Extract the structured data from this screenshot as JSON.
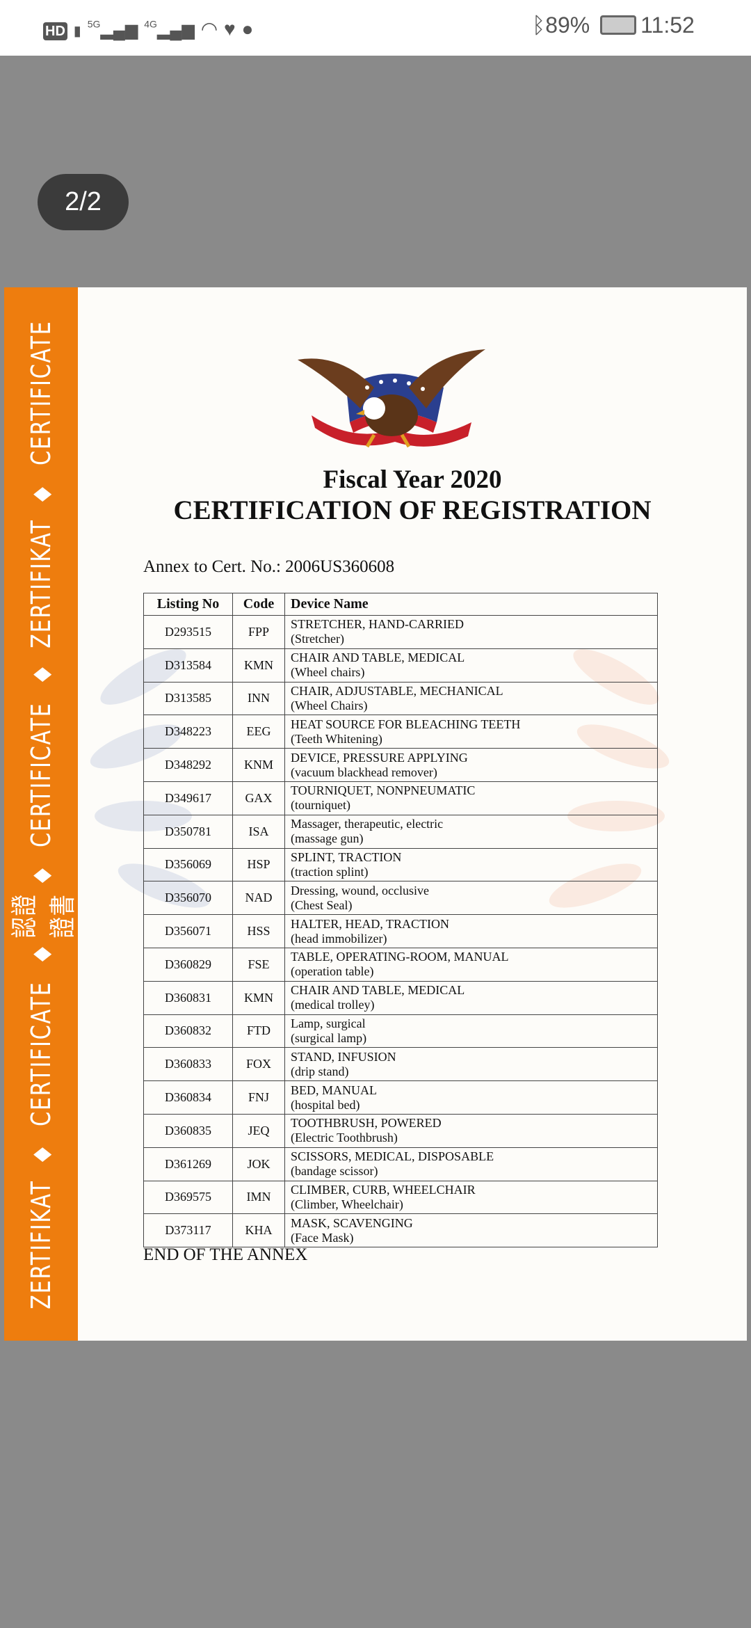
{
  "status_bar": {
    "left_icons": [
      "hd-icon",
      "sim-1-icon",
      "5g-signal-icon",
      "4g-signal-icon",
      "wifi-icon",
      "health-icon",
      "chat-icon"
    ],
    "battery_percent": "89%",
    "time": "11:52",
    "net_5g": "5G",
    "net_4g": "4G",
    "hd": "HD"
  },
  "viewer": {
    "page_indicator": "2/2"
  },
  "certificate": {
    "strip_text": [
      "ZERTIFIKAT",
      "CERTIFICATE",
      "認證證書",
      "CERTIFICATE",
      "ZERTIFIKAT",
      "CERTIFICATE"
    ],
    "strip_color": "#ee7d0e",
    "fiscal_year": "Fiscal Year 2020",
    "title": "CERTIFICATION OF REGISTRATION",
    "annex_line": "Annex to Cert. No.: 2006US360608",
    "table": {
      "headers": [
        "Listing No",
        "Code",
        "Device Name"
      ],
      "rows": [
        {
          "listing": "D293515",
          "code": "FPP",
          "name": "STRETCHER, HAND-CARRIED",
          "desc": "(Stretcher)"
        },
        {
          "listing": "D313584",
          "code": "KMN",
          "name": "CHAIR AND TABLE, MEDICAL",
          "desc": "(Wheel chairs)"
        },
        {
          "listing": "D313585",
          "code": "INN",
          "name": "CHAIR, ADJUSTABLE, MECHANICAL",
          "desc": "(Wheel Chairs)"
        },
        {
          "listing": "D348223",
          "code": "EEG",
          "name": "HEAT SOURCE FOR BLEACHING TEETH",
          "desc": "(Teeth Whitening)"
        },
        {
          "listing": "D348292",
          "code": "KNM",
          "name": "DEVICE, PRESSURE APPLYING",
          "desc": "(vacuum blackhead remover)"
        },
        {
          "listing": "D349617",
          "code": "GAX",
          "name": "TOURNIQUET, NONPNEUMATIC",
          "desc": "(tourniquet)"
        },
        {
          "listing": "D350781",
          "code": "ISA",
          "name": "Massager, therapeutic, electric",
          "desc": "(massage gun)"
        },
        {
          "listing": "D356069",
          "code": "HSP",
          "name": "SPLINT, TRACTION",
          "desc": "(traction splint)"
        },
        {
          "listing": "D356070",
          "code": "NAD",
          "name": "Dressing, wound, occlusive",
          "desc": "(Chest Seal)"
        },
        {
          "listing": "D356071",
          "code": "HSS",
          "name": "HALTER, HEAD, TRACTION",
          "desc": "(head immobilizer)"
        },
        {
          "listing": "D360829",
          "code": "FSE",
          "name": "TABLE, OPERATING-ROOM, MANUAL",
          "desc": "(operation table)"
        },
        {
          "listing": "D360831",
          "code": "KMN",
          "name": "CHAIR AND TABLE, MEDICAL",
          "desc": "(medical trolley)"
        },
        {
          "listing": "D360832",
          "code": "FTD",
          "name": "Lamp, surgical",
          "desc": "(surgical lamp)"
        },
        {
          "listing": "D360833",
          "code": "FOX",
          "name": "STAND, INFUSION",
          "desc": "(drip stand)"
        },
        {
          "listing": "D360834",
          "code": "FNJ",
          "name": "BED, MANUAL",
          "desc": "(hospital bed)"
        },
        {
          "listing": "D360835",
          "code": "JEQ",
          "name": "TOOTHBRUSH, POWERED",
          "desc": "(Electric Toothbrush)"
        },
        {
          "listing": "D361269",
          "code": "JOK",
          "name": "SCISSORS, MEDICAL, DISPOSABLE",
          "desc": "(bandage scissor)"
        },
        {
          "listing": "D369575",
          "code": "IMN",
          "name": "CLIMBER, CURB, WHEELCHAIR",
          "desc": "(Climber, Wheelchair)"
        },
        {
          "listing": "D373117",
          "code": "KHA",
          "name": "MASK, SCAVENGING",
          "desc": "(Face Mask)"
        }
      ]
    },
    "end_text": "END OF THE ANNEX"
  }
}
